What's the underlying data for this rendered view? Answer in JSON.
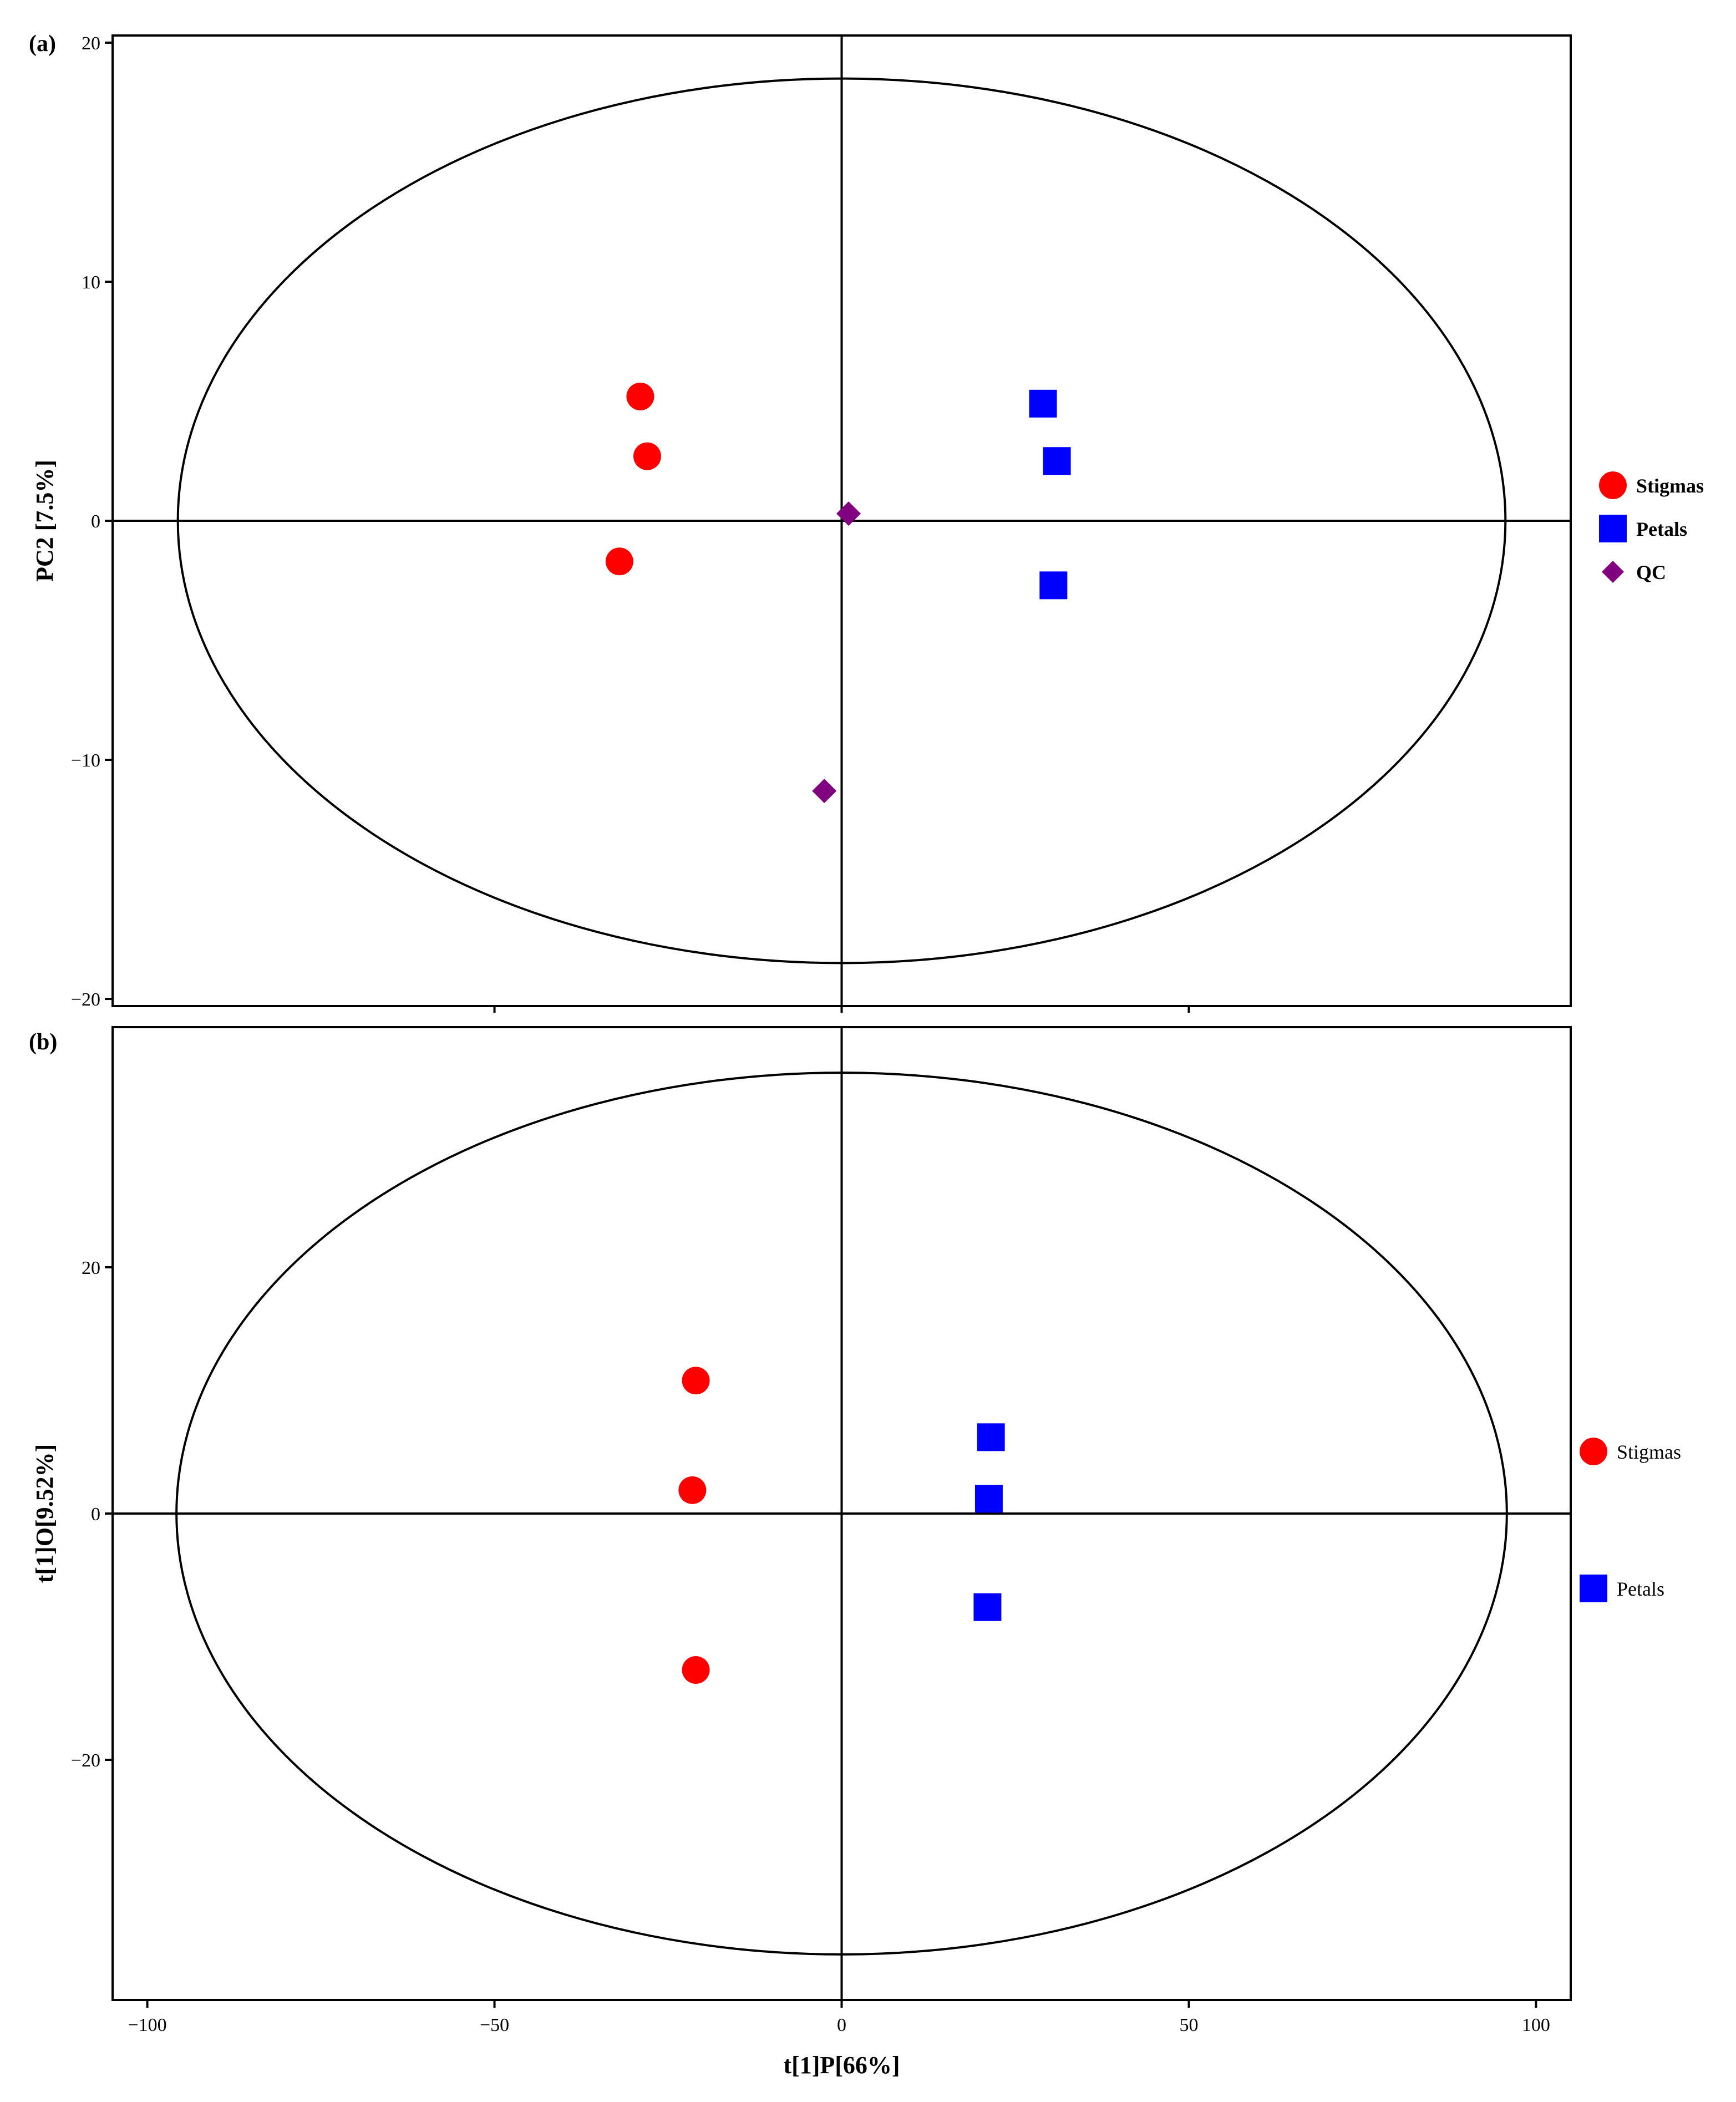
{
  "chart_data": [
    {
      "type": "scatter",
      "panel_label": "(a)",
      "ylabel": "PC2  [7.5%]",
      "xlim": [
        -105,
        105
      ],
      "ylim": [
        -20.3,
        20.3
      ],
      "yticks": [
        -20,
        -10,
        0,
        10,
        20
      ],
      "ellipse": {
        "center": [
          0,
          0
        ],
        "rx": 95.6,
        "ry": 18.5
      },
      "reference_lines": {
        "x": 0,
        "y": 0
      },
      "grid": false,
      "legend_position": "right",
      "legend_bold": true,
      "series": [
        {
          "name": "Stigmas",
          "marker": "circle",
          "color": "#ff0000",
          "points": [
            [
              -29,
              5.2
            ],
            [
              -28,
              2.7
            ],
            [
              -32,
              -1.7
            ]
          ]
        },
        {
          "name": "Petals",
          "marker": "square",
          "color": "#0000ff",
          "points": [
            [
              29,
              4.9
            ],
            [
              31,
              2.5
            ],
            [
              30.5,
              -2.7
            ]
          ]
        },
        {
          "name": "QC",
          "marker": "diamond",
          "color": "#800080",
          "points": [
            [
              1,
              0.3
            ],
            [
              -2.5,
              -11.3
            ]
          ]
        }
      ]
    },
    {
      "type": "scatter",
      "panel_label": "(b)",
      "xlabel": "t[1]P[66%]",
      "ylabel": "t[1]O[9.52%]",
      "xlim": [
        -105,
        105
      ],
      "ylim": [
        -39.5,
        39.5
      ],
      "xticks": [
        -100,
        -50,
        0,
        50,
        100
      ],
      "yticks": [
        -20,
        0,
        20
      ],
      "ellipse": {
        "center": [
          0,
          0
        ],
        "rx": 95.8,
        "ry": 35.8
      },
      "reference_lines": {
        "x": 0,
        "y": 0
      },
      "grid": false,
      "legend_position": "right",
      "legend_bold": false,
      "series": [
        {
          "name": "Stigmas",
          "marker": "circle",
          "color": "#ff0000",
          "points": [
            [
              -21,
              10.8
            ],
            [
              -21.5,
              1.9
            ],
            [
              -21,
              -12.7
            ]
          ]
        },
        {
          "name": "Petals",
          "marker": "square",
          "color": "#0000ff",
          "points": [
            [
              21.5,
              6.2
            ],
            [
              21.2,
              1.2
            ],
            [
              21,
              -7.6
            ]
          ]
        }
      ]
    }
  ]
}
